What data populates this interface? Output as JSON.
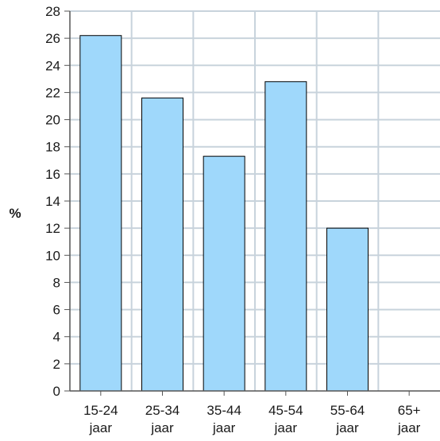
{
  "chart_data": {
    "type": "bar",
    "title": "",
    "xlabel": "",
    "ylabel": "%",
    "ylim": [
      0,
      28
    ],
    "yticks": [
      0,
      2,
      4,
      6,
      8,
      10,
      12,
      14,
      16,
      18,
      20,
      22,
      24,
      26,
      28
    ],
    "grid": true,
    "categories": [
      [
        "15-24",
        "jaar"
      ],
      [
        "25-34",
        "jaar"
      ],
      [
        "35-44",
        "jaar"
      ],
      [
        "45-54",
        "jaar"
      ],
      [
        "55-64",
        "jaar"
      ],
      [
        "65+",
        "jaar"
      ]
    ],
    "values": [
      26.2,
      21.6,
      17.3,
      22.8,
      12.0,
      null
    ],
    "bar_color": "#9fd8fb",
    "bar_edge_color": "#000000",
    "grid_color": "#c8d3dc",
    "axis_color": "#555555"
  }
}
